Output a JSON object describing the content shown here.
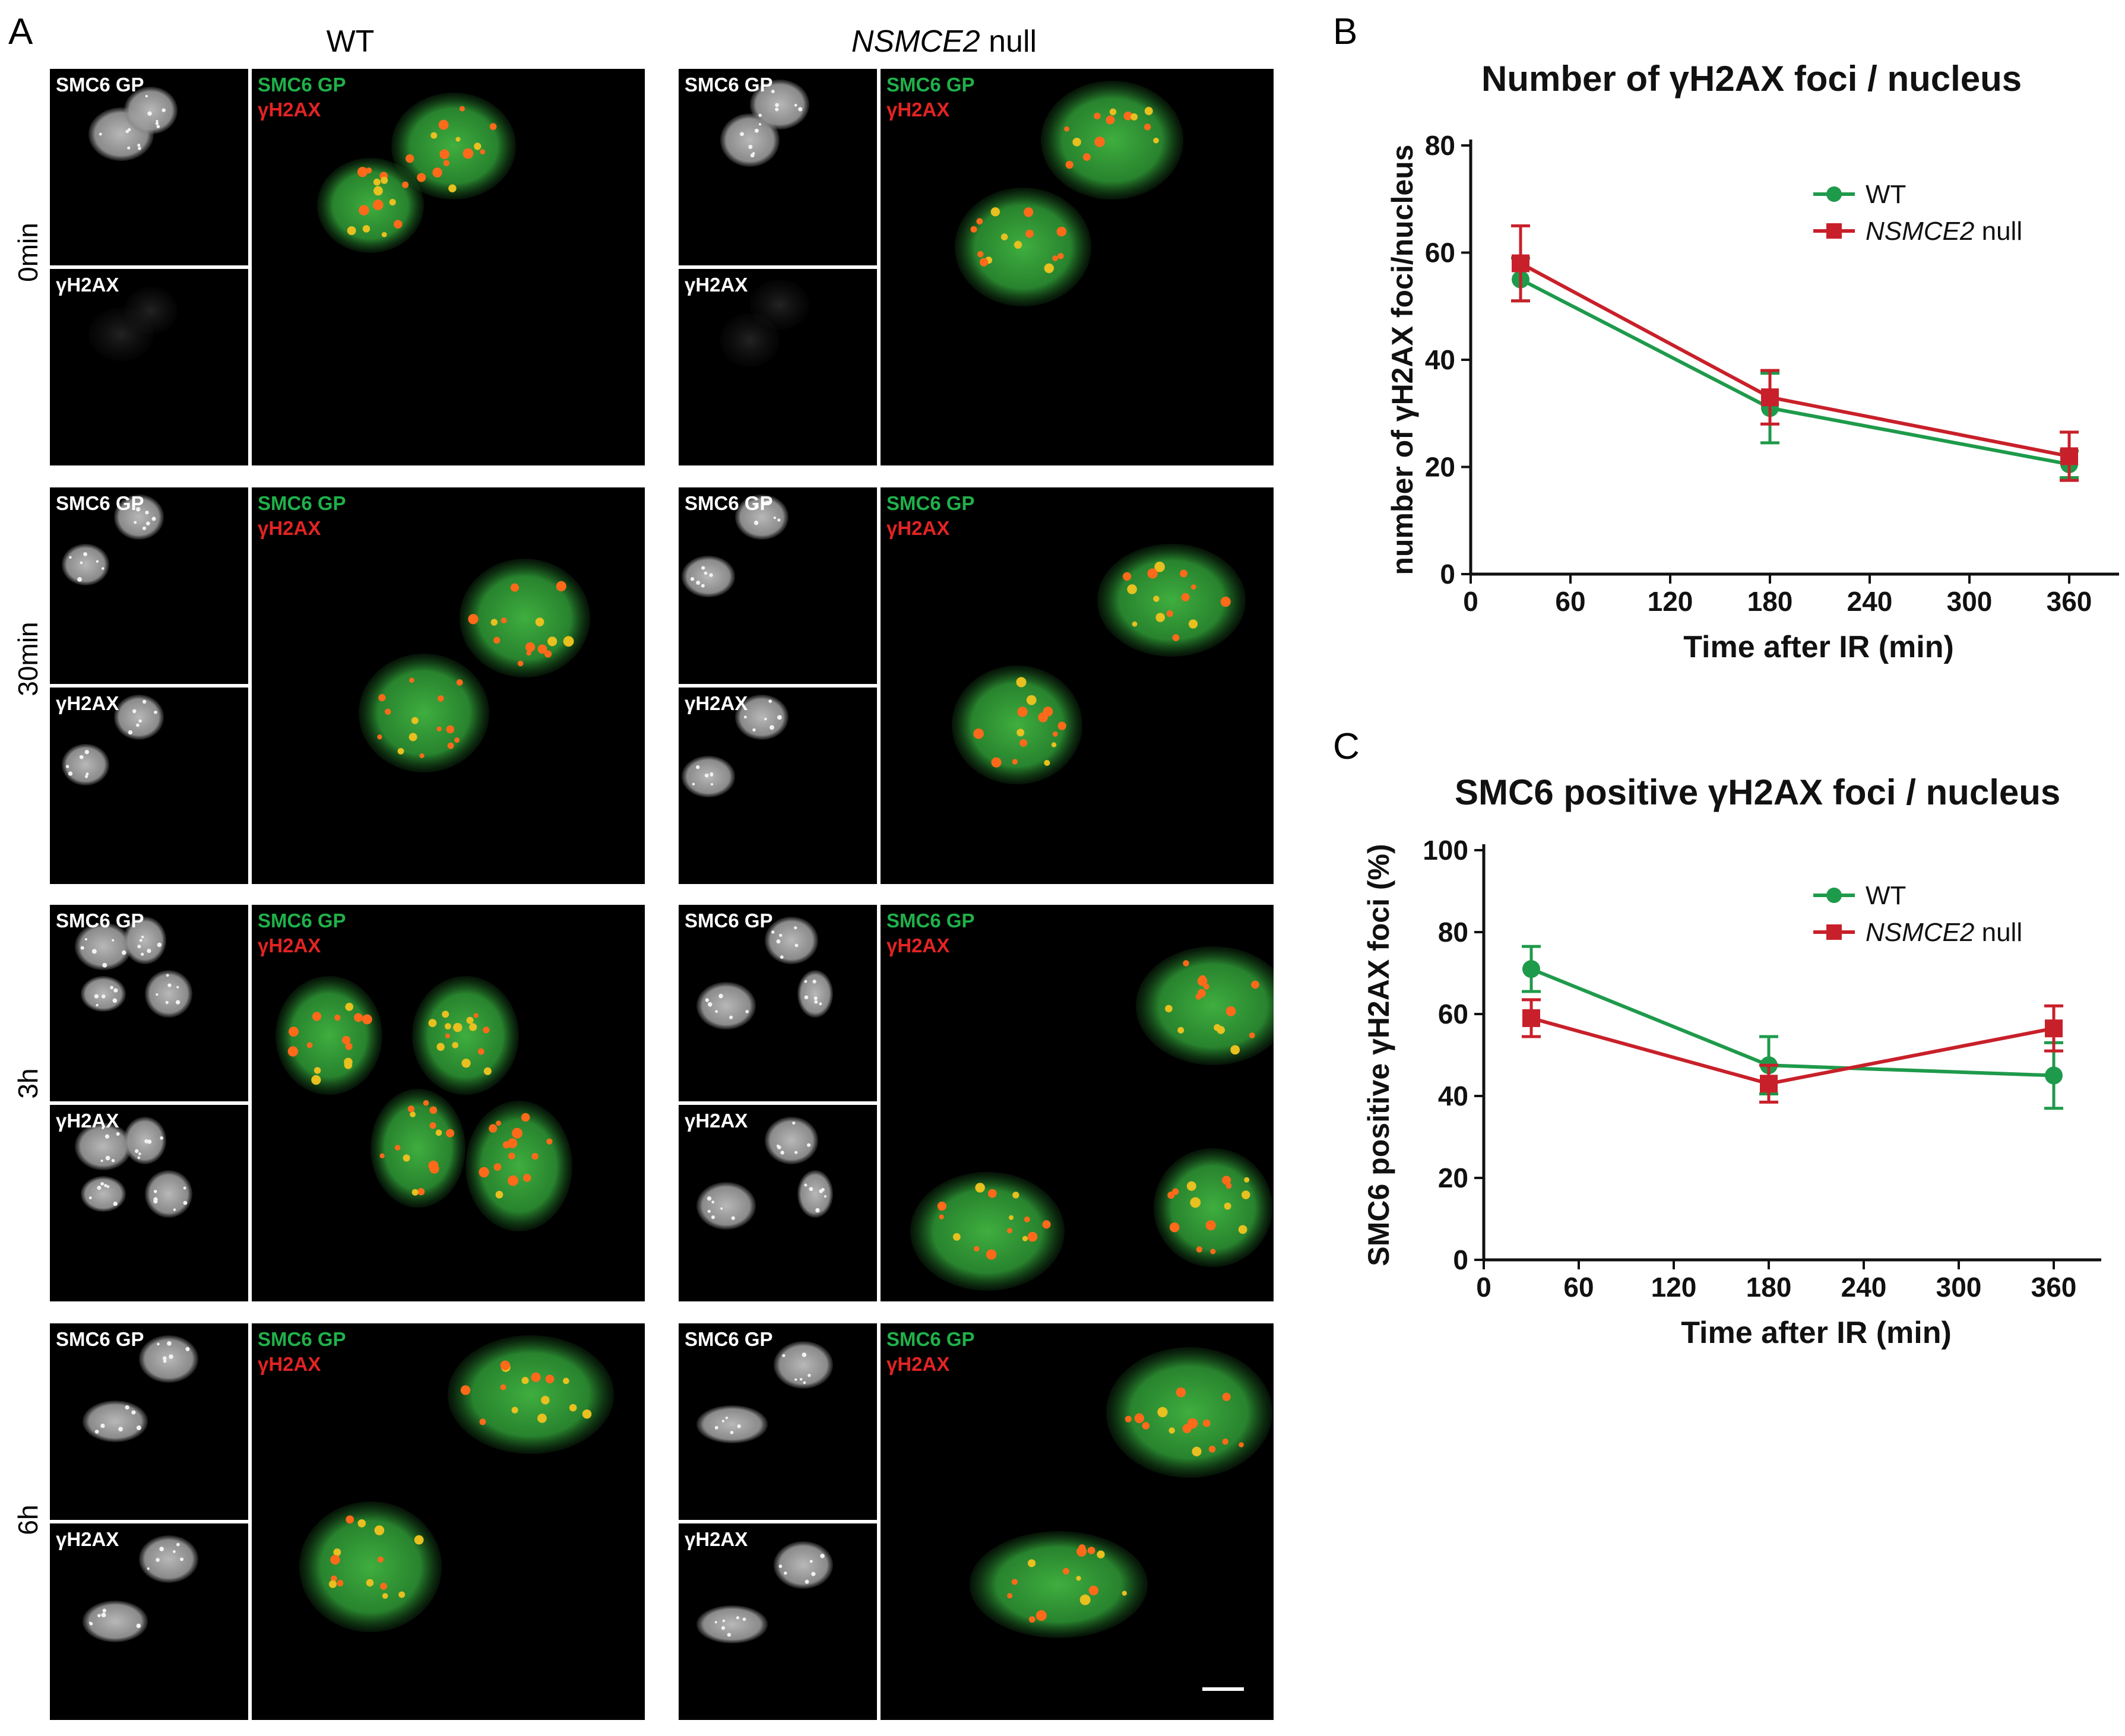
{
  "panelA": {
    "letter": "A",
    "columns": [
      {
        "label": "WT",
        "italic_part": "",
        "suffix": ""
      },
      {
        "label": "",
        "italic_part": "NSMCE2",
        "suffix": " null"
      }
    ],
    "rows": [
      "0min",
      "30min",
      "3h",
      "6h"
    ],
    "channel_labels": {
      "top_gray": "SMC6 GP",
      "bottom_gray": "γH2AX",
      "merge_green": "SMC6 GP",
      "merge_red": "γH2AX"
    }
  },
  "panelB": {
    "letter": "B",
    "title": "Number of γH2AX foci / nucleus"
  },
  "panelC": {
    "letter": "C",
    "title": "SMC6 positive γH2AX foci / nucleus"
  },
  "chart_data": [
    {
      "type": "line",
      "title": "Number of γH2AX foci / nucleus",
      "xlabel": "Time after IR (min)",
      "ylabel": "number of γH2AX foci/nucleus",
      "xlim": [
        0,
        390
      ],
      "ylim": [
        0,
        80
      ],
      "xticks": [
        0,
        60,
        120,
        180,
        240,
        300,
        360
      ],
      "yticks": [
        0,
        20,
        40,
        60,
        80
      ],
      "legend_position": "top-right",
      "series": [
        {
          "name": "WT",
          "name_italic": "",
          "name_suffix": "",
          "color": "#1e9a4b",
          "marker": "circle",
          "x": [
            30,
            180,
            360
          ],
          "y": [
            55,
            31,
            20.5
          ],
          "err": [
            4,
            6.5,
            2.5
          ]
        },
        {
          "name": "NSMCE2 null",
          "name_italic": "NSMCE2",
          "name_suffix": " null",
          "color": "#c8202a",
          "marker": "square",
          "x": [
            30,
            180,
            360
          ],
          "y": [
            58,
            33,
            22
          ],
          "err": [
            7,
            5,
            4.5
          ]
        }
      ]
    },
    {
      "type": "line",
      "title": "SMC6 positive γH2AX foci / nucleus",
      "xlabel": "Time after IR (min)",
      "ylabel": "SMC6 positive γH2AX foci (%)",
      "xlim": [
        0,
        390
      ],
      "ylim": [
        0,
        100
      ],
      "xticks": [
        0,
        60,
        120,
        180,
        240,
        300,
        360
      ],
      "yticks": [
        0,
        20,
        40,
        60,
        80,
        100
      ],
      "legend_position": "top-right",
      "series": [
        {
          "name": "WT",
          "name_italic": "",
          "name_suffix": "",
          "color": "#1e9a4b",
          "marker": "circle",
          "x": [
            30,
            180,
            360
          ],
          "y": [
            71,
            47.5,
            45
          ],
          "err": [
            5.5,
            7,
            8
          ]
        },
        {
          "name": "NSMCE2 null",
          "name_italic": "NSMCE2",
          "name_suffix": " null",
          "color": "#c8202a",
          "marker": "square",
          "x": [
            30,
            180,
            360
          ],
          "y": [
            59,
            43,
            56.5
          ],
          "err": [
            4.5,
            4.5,
            5.5
          ]
        }
      ]
    }
  ]
}
